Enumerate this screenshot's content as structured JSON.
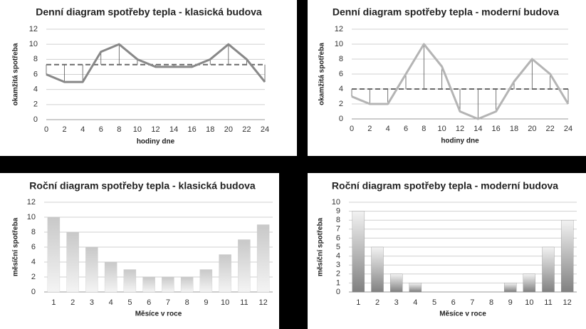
{
  "chart_data": [
    {
      "type": "line",
      "title": "Denní diagram spotřeby tepla - klasická budova",
      "x_label": "hodiny dne",
      "y_label": "okamžitá spotřeba",
      "x": [
        0,
        2,
        4,
        6,
        8,
        10,
        12,
        14,
        16,
        18,
        20,
        22,
        24
      ],
      "series": [
        {
          "color": "#888888",
          "values": [
            6,
            5,
            5,
            9,
            10,
            8,
            7,
            7,
            7,
            8,
            10,
            8,
            5
          ]
        }
      ],
      "mean_line": 7.3,
      "mean_color": "#6a6a6a",
      "xlim": [
        0,
        24
      ],
      "xticks": [
        0,
        2,
        4,
        6,
        8,
        10,
        12,
        14,
        16,
        18,
        20,
        22,
        24
      ],
      "ylim": [
        0,
        12
      ],
      "yticks": [
        0,
        2,
        4,
        6,
        8,
        10,
        12
      ],
      "grid": true
    },
    {
      "type": "line",
      "title": "Denní diagram spotřeby tepla - moderní budova",
      "x_label": "hodiny dne",
      "y_label": "okamžitá spotřeba",
      "x": [
        0,
        2,
        4,
        6,
        8,
        10,
        12,
        14,
        16,
        18,
        20,
        22,
        24
      ],
      "series": [
        {
          "color": "#b4b4b4",
          "values": [
            3,
            2,
            2,
            6,
            10,
            7,
            1,
            0,
            1,
            5,
            8,
            6,
            2
          ]
        }
      ],
      "mean_line": 4,
      "mean_color": "#6a6a6a",
      "xlim": [
        0,
        24
      ],
      "xticks": [
        0,
        2,
        4,
        6,
        8,
        10,
        12,
        14,
        16,
        18,
        20,
        22,
        24
      ],
      "ylim": [
        0,
        12
      ],
      "yticks": [
        0,
        2,
        4,
        6,
        8,
        10,
        12
      ],
      "grid": true
    },
    {
      "type": "bar",
      "title": "Roční diagram spotřeby tepla - klasická budova",
      "x_label": "Měsíce v roce",
      "y_label": "měsíční spotřeba",
      "categories": [
        "1",
        "2",
        "3",
        "4",
        "5",
        "6",
        "7",
        "8",
        "9",
        "10",
        "11",
        "12"
      ],
      "values": [
        10,
        8,
        6,
        4,
        3,
        2,
        2,
        2,
        3,
        5,
        7,
        9
      ],
      "color": "#c8c8c8",
      "ylim": [
        0,
        12
      ],
      "yticks": [
        0,
        2,
        4,
        6,
        8,
        10,
        12
      ],
      "grid": true
    },
    {
      "type": "bar",
      "title": "Roční diagram spotřeby tepla - moderní budova",
      "x_label": "Měsíce v roce",
      "y_label": "měsíční spotřeba",
      "categories": [
        "1",
        "2",
        "3",
        "4",
        "5",
        "6",
        "7",
        "8",
        "9",
        "10",
        "11",
        "12"
      ],
      "values": [
        9,
        5,
        2,
        1,
        0,
        0,
        0,
        0,
        1,
        2,
        5,
        8
      ],
      "color": "#808080",
      "ylim": [
        0,
        10
      ],
      "yticks": [
        0,
        1,
        2,
        3,
        4,
        5,
        6,
        7,
        8,
        9,
        10
      ],
      "grid": true
    }
  ]
}
